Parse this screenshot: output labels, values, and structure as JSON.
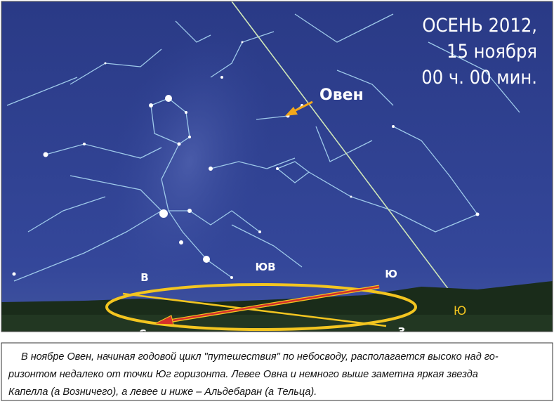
{
  "header": {
    "lines": [
      "ОСЕНЬ 2012,",
      "15 ноября",
      "00 ч. 00 мин."
    ]
  },
  "labels": {
    "aries": "Овен",
    "east": "В",
    "southeast": "ЮВ",
    "south": "Ю",
    "north": "С",
    "west": "З",
    "ecliptic_south": "Ю"
  },
  "caption": {
    "lines": [
      "В ноябре Овен, начиная годовой цикл \"путешествия\" по небосводу, располагается высоко над го-",
      "ризонтом недалеко от точки Юг горизонта. Левее Овна и немного выше заметна  яркая звезда",
      "Капелла (а Возничего), а левее и ниже – Альдебаран (а Тельца)."
    ]
  }
}
